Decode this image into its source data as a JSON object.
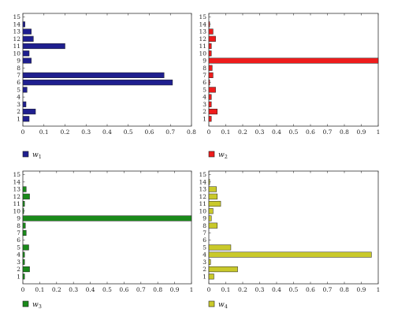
{
  "chart_data": [
    {
      "type": "bar",
      "orientation": "horizontal",
      "categories": [
        "1",
        "2",
        "3",
        "4",
        "5",
        "6",
        "7",
        "8",
        "9",
        "10",
        "11",
        "12",
        "13",
        "14",
        "15"
      ],
      "values": [
        0.03,
        0.06,
        0.015,
        0.0,
        0.02,
        0.71,
        0.67,
        0.0,
        0.04,
        0.03,
        0.2,
        0.05,
        0.04,
        0.01,
        0.0
      ],
      "xlim": [
        0,
        0.8
      ],
      "xticks": [
        "0",
        "0.1",
        "0.2",
        "0.3",
        "0.4",
        "0.5",
        "0.6",
        "0.7",
        "0.8"
      ],
      "legend": {
        "symbol": "w",
        "subscript": "1"
      },
      "color": "#1f1f8f"
    },
    {
      "type": "bar",
      "orientation": "horizontal",
      "categories": [
        "1",
        "2",
        "3",
        "4",
        "5",
        "6",
        "7",
        "8",
        "9",
        "10",
        "11",
        "12",
        "13",
        "14",
        "15"
      ],
      "values": [
        0.015,
        0.05,
        0.015,
        0.015,
        0.04,
        0.005,
        0.025,
        0.02,
        1.0,
        0.015,
        0.015,
        0.04,
        0.025,
        0.005,
        0.0
      ],
      "xlim": [
        0,
        1
      ],
      "xticks": [
        "0",
        "0.1",
        "0.2",
        "0.3",
        "0.4",
        "0.5",
        "0.6",
        "0.7",
        "0.8",
        "0.9",
        "1"
      ],
      "legend": {
        "symbol": "w",
        "subscript": "2"
      },
      "color": "#ee1c1c"
    },
    {
      "type": "bar",
      "orientation": "horizontal",
      "categories": [
        "1",
        "2",
        "3",
        "4",
        "5",
        "6",
        "7",
        "8",
        "9",
        "10",
        "11",
        "12",
        "13",
        "14",
        "15"
      ],
      "values": [
        0.01,
        0.04,
        0.01,
        0.01,
        0.035,
        0.0,
        0.02,
        0.015,
        1.0,
        0.005,
        0.01,
        0.04,
        0.02,
        0.0,
        0.0
      ],
      "xlim": [
        0,
        1
      ],
      "xticks": [
        "0",
        "0.1",
        "0.2",
        "0.3",
        "0.4",
        "0.5",
        "0.6",
        "0.7",
        "0.8",
        "0.9",
        "1"
      ],
      "legend": {
        "symbol": "w",
        "subscript": "3"
      },
      "color": "#1a8a1a"
    },
    {
      "type": "bar",
      "orientation": "horizontal",
      "categories": [
        "1",
        "2",
        "3",
        "4",
        "5",
        "6",
        "7",
        "8",
        "9",
        "10",
        "11",
        "12",
        "13",
        "14",
        "15"
      ],
      "values": [
        0.03,
        0.17,
        0.01,
        0.96,
        0.13,
        0.0,
        0.0,
        0.05,
        0.015,
        0.025,
        0.07,
        0.05,
        0.045,
        0.005,
        0.0
      ],
      "xlim": [
        0,
        1
      ],
      "xticks": [
        "0",
        "0.1",
        "0.2",
        "0.3",
        "0.4",
        "0.5",
        "0.6",
        "0.7",
        "0.8",
        "0.9",
        "1"
      ],
      "legend": {
        "symbol": "w",
        "subscript": "4"
      },
      "color": "#c9c92a"
    }
  ]
}
